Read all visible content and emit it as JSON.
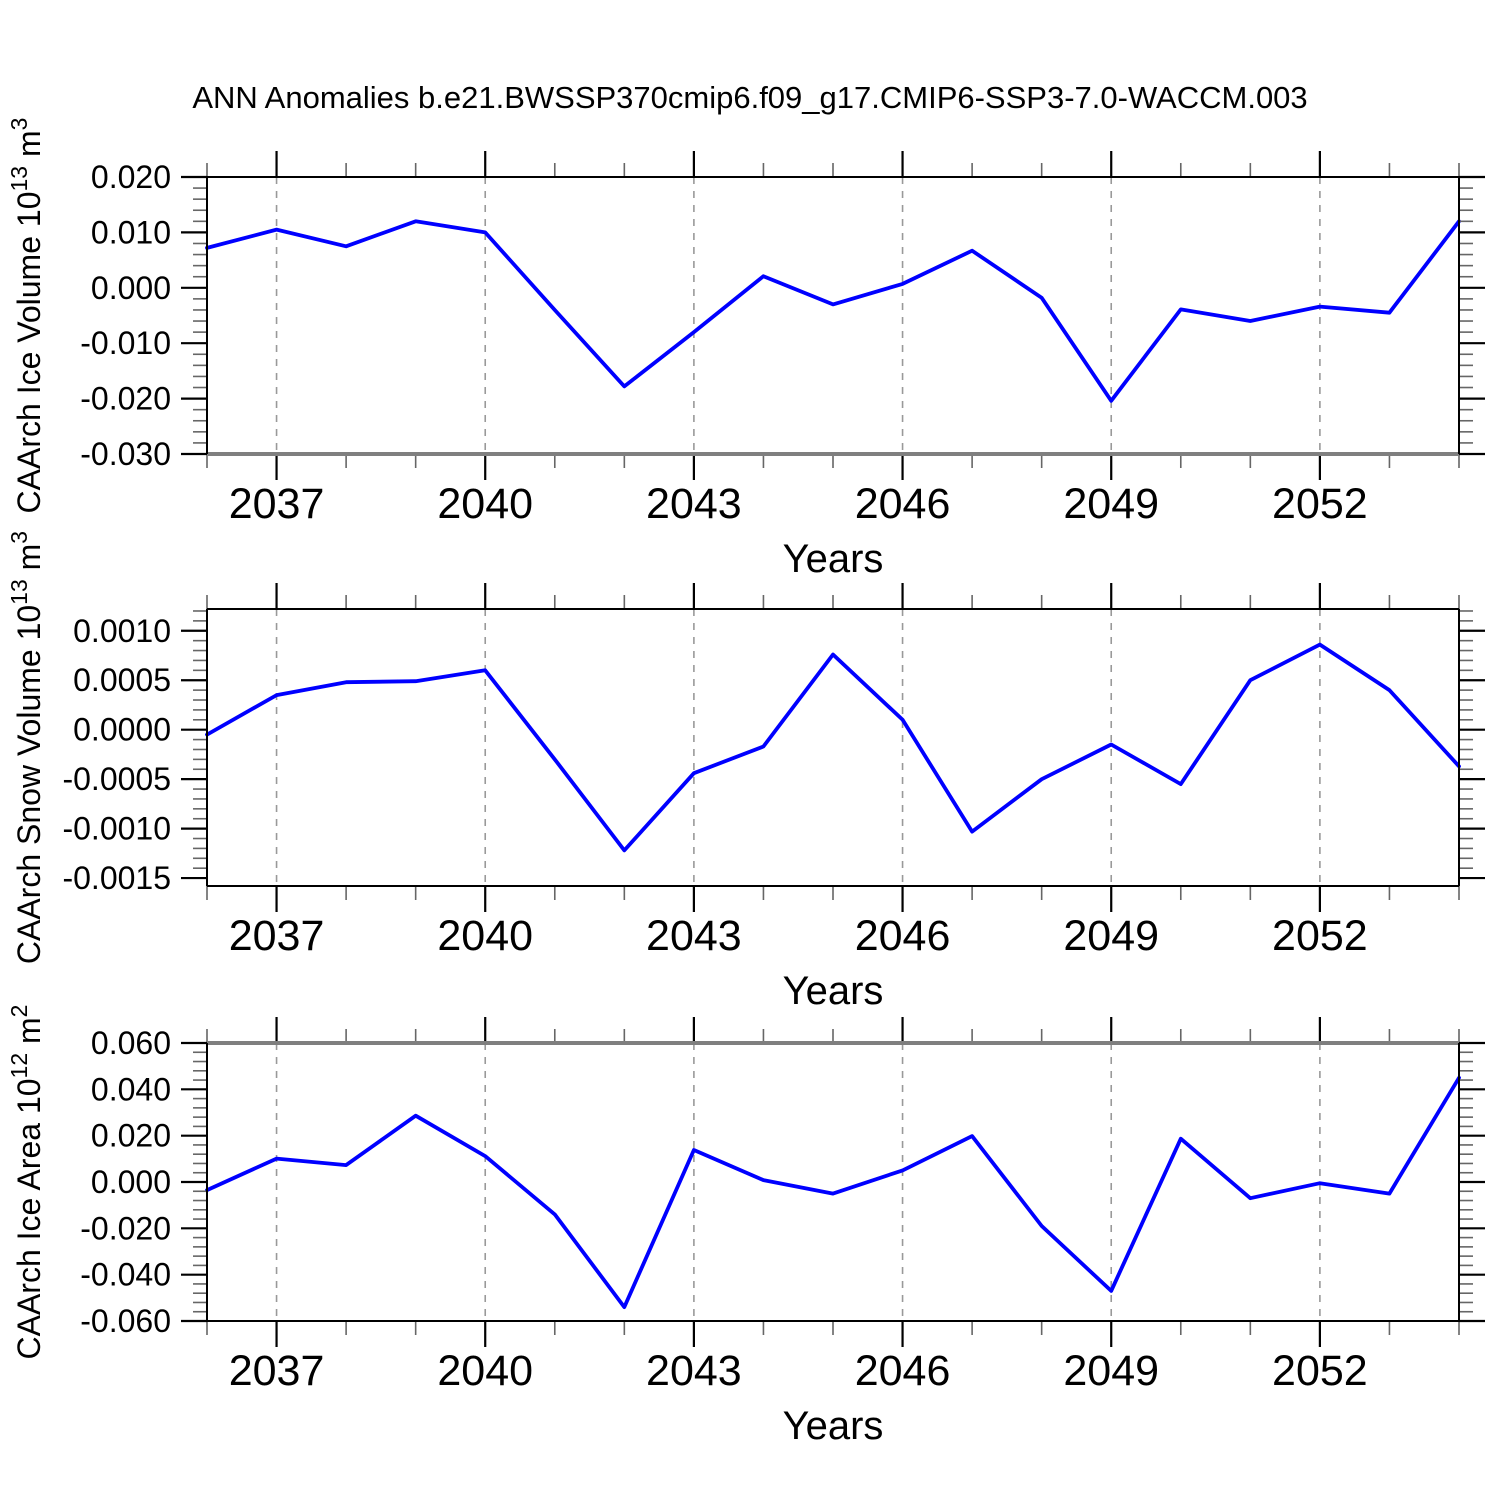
{
  "title": "ANN Anomalies b.e21.BWSSP370cmip6.f09_g17.CMIP6-SSP3-7.0-WACCM.003",
  "line_color": "#0000ff",
  "grid_color": "#999999",
  "emphasis_color": "#7f7f7f",
  "chart_data": [
    {
      "type": "line",
      "title": "",
      "ylabel": "CAArch Ice Volume 10^13 m^3",
      "ylabel_parts": [
        {
          "t": "CAArch Ice Volume 10"
        },
        {
          "t": "13",
          "sup": true
        },
        {
          "t": " m"
        },
        {
          "t": "3",
          "sup": true
        }
      ],
      "xlabel": "Years",
      "x": [
        2036,
        2037,
        2038,
        2039,
        2040,
        2041,
        2042,
        2043,
        2044,
        2045,
        2046,
        2047,
        2048,
        2049,
        2050,
        2051,
        2052,
        2053,
        2054
      ],
      "values": [
        0.0072,
        0.0105,
        0.0075,
        0.012,
        0.01,
        -0.004,
        -0.0178,
        -0.008,
        0.0021,
        -0.003,
        0.0007,
        0.0067,
        -0.0018,
        -0.0204,
        -0.0039,
        -0.006,
        -0.0034,
        -0.0045,
        0.012
      ],
      "xlim": [
        2036,
        2054
      ],
      "ylim": [
        -0.03,
        0.02
      ],
      "xticks_major": [
        2037,
        2040,
        2043,
        2046,
        2049,
        2052
      ],
      "xtick_labels": [
        "2037",
        "2040",
        "2043",
        "2046",
        "2049",
        "2052"
      ],
      "xminor_step": 1,
      "yticks_major": [
        0.02,
        0.01,
        0.0,
        -0.01,
        -0.02,
        -0.03
      ],
      "ytick_labels": [
        "0.020",
        "0.010",
        "0.000",
        "-0.010",
        "-0.020",
        "-0.030"
      ],
      "yminor_step": 0.002,
      "grid": "vertical-dashed-at-major-xticks",
      "legend": "none",
      "frame_emphasis": "bottom"
    },
    {
      "type": "line",
      "title": "",
      "ylabel": "CAArch Snow Volume 10^13 m^3",
      "ylabel_parts": [
        {
          "t": "CAArch Snow Volume 10"
        },
        {
          "t": "13",
          "sup": true
        },
        {
          "t": " m"
        },
        {
          "t": "3",
          "sup": true
        }
      ],
      "xlabel": "Years",
      "x": [
        2036,
        2037,
        2038,
        2039,
        2040,
        2041,
        2042,
        2043,
        2044,
        2045,
        2046,
        2047,
        2048,
        2049,
        2050,
        2051,
        2052,
        2053,
        2054
      ],
      "values": [
        -5e-05,
        0.00035,
        0.00048,
        0.00049,
        0.0006,
        -0.0003,
        -0.00122,
        -0.00044,
        -0.00017,
        0.00076,
        0.0001,
        -0.00103,
        -0.0005,
        -0.00015,
        -0.00055,
        0.0005,
        0.00086,
        0.0004,
        -0.00037
      ],
      "xlim": [
        2036,
        2054
      ],
      "ylim": [
        -0.00158,
        0.00122
      ],
      "xticks_major": [
        2037,
        2040,
        2043,
        2046,
        2049,
        2052
      ],
      "xtick_labels": [
        "2037",
        "2040",
        "2043",
        "2046",
        "2049",
        "2052"
      ],
      "xminor_step": 1,
      "yticks_major": [
        0.001,
        0.0005,
        0.0,
        -0.0005,
        -0.001,
        -0.0015
      ],
      "ytick_labels": [
        "0.0010",
        "0.0005",
        "0.0000",
        "-0.0005",
        "-0.0010",
        "-0.0015"
      ],
      "yminor_step": 0.0001,
      "grid": "vertical-dashed-at-major-xticks",
      "legend": "none",
      "frame_emphasis": "none"
    },
    {
      "type": "line",
      "title": "",
      "ylabel": "CAArch Ice Area 10^12 m^2",
      "ylabel_parts": [
        {
          "t": "CAArch Ice Area 10"
        },
        {
          "t": "12",
          "sup": true
        },
        {
          "t": " m"
        },
        {
          "t": "2",
          "sup": true
        }
      ],
      "xlabel": "Years",
      "x": [
        2036,
        2037,
        2038,
        2039,
        2040,
        2041,
        2042,
        2043,
        2044,
        2045,
        2046,
        2047,
        2048,
        2049,
        2050,
        2051,
        2052,
        2053,
        2054
      ],
      "values": [
        -0.0035,
        0.0101,
        0.0073,
        0.0286,
        0.0112,
        -0.014,
        -0.054,
        0.0138,
        0.0008,
        -0.005,
        0.005,
        0.0198,
        -0.019,
        -0.047,
        0.0187,
        -0.007,
        -0.0005,
        -0.005,
        0.045
      ],
      "xlim": [
        2036,
        2054
      ],
      "ylim": [
        -0.06,
        0.06
      ],
      "xticks_major": [
        2037,
        2040,
        2043,
        2046,
        2049,
        2052
      ],
      "xtick_labels": [
        "2037",
        "2040",
        "2043",
        "2046",
        "2049",
        "2052"
      ],
      "xminor_step": 1,
      "yticks_major": [
        0.06,
        0.04,
        0.02,
        0.0,
        -0.02,
        -0.04,
        -0.06
      ],
      "ytick_labels": [
        "0.060",
        "0.040",
        "0.020",
        "0.000",
        "-0.020",
        "-0.040",
        "-0.060"
      ],
      "yminor_step": 0.004,
      "grid": "vertical-dashed-at-major-xticks",
      "legend": "none",
      "frame_emphasis": "top"
    }
  ]
}
